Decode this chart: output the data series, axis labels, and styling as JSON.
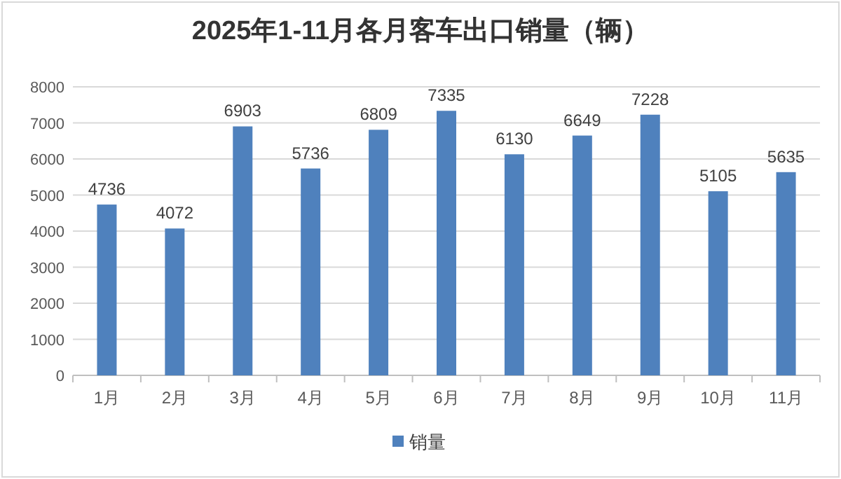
{
  "chart_data": {
    "type": "bar",
    "title": "2025年1-11月各月客车出口销量（辆）",
    "categories": [
      "1月",
      "2月",
      "3月",
      "4月",
      "5月",
      "6月",
      "7月",
      "8月",
      "9月",
      "10月",
      "11月"
    ],
    "series": [
      {
        "name": "销量",
        "color": "#4f81bd",
        "values": [
          4736,
          4072,
          6903,
          5736,
          6809,
          7335,
          6130,
          6649,
          7228,
          5105,
          5635
        ]
      }
    ],
    "ylim": [
      0,
      8000
    ],
    "yticks": [
      0,
      1000,
      2000,
      3000,
      4000,
      5000,
      6000,
      7000,
      8000
    ],
    "grid": "y",
    "legend": "bottom",
    "data_labels": true
  }
}
